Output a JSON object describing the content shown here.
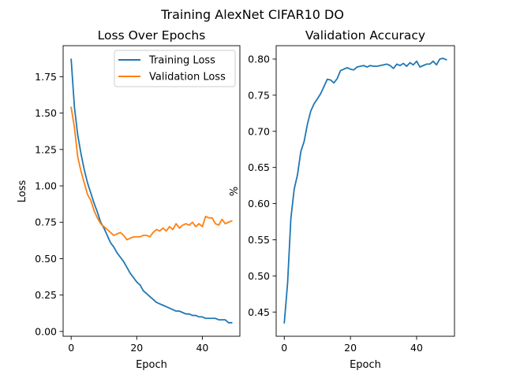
{
  "figure": {
    "title": "Training AlexNet CIFAR10 DO"
  },
  "colors": {
    "training": "#1f77b4",
    "validation": "#ff7f0e"
  },
  "chart_data": [
    {
      "type": "line",
      "title": "Loss Over Epochs",
      "xlabel": "Epoch",
      "ylabel": "Loss",
      "xlim": [
        -2.45,
        51.45
      ],
      "ylim": [
        -0.033,
        1.963
      ],
      "xticks": [
        0,
        20,
        40
      ],
      "yticks": [
        0.0,
        0.25,
        0.5,
        0.75,
        1.0,
        1.25,
        1.5,
        1.75
      ],
      "ytick_labels": [
        "0.00",
        "0.25",
        "0.50",
        "0.75",
        "1.00",
        "1.25",
        "1.50",
        "1.75"
      ],
      "legend": "top-right",
      "grid": false,
      "x": [
        0,
        1,
        2,
        3,
        4,
        5,
        6,
        7,
        8,
        9,
        10,
        11,
        12,
        13,
        14,
        15,
        16,
        17,
        18,
        19,
        20,
        21,
        22,
        23,
        24,
        25,
        26,
        27,
        28,
        29,
        30,
        31,
        32,
        33,
        34,
        35,
        36,
        37,
        38,
        39,
        40,
        41,
        42,
        43,
        44,
        45,
        46,
        47,
        48,
        49
      ],
      "series": [
        {
          "name": "Training Loss",
          "color": "#1f77b4",
          "values": [
            1.87,
            1.54,
            1.35,
            1.22,
            1.11,
            1.02,
            0.95,
            0.88,
            0.82,
            0.75,
            0.71,
            0.66,
            0.61,
            0.58,
            0.54,
            0.51,
            0.48,
            0.44,
            0.4,
            0.37,
            0.34,
            0.32,
            0.28,
            0.26,
            0.24,
            0.22,
            0.2,
            0.19,
            0.18,
            0.17,
            0.16,
            0.15,
            0.14,
            0.14,
            0.13,
            0.12,
            0.12,
            0.11,
            0.11,
            0.1,
            0.1,
            0.09,
            0.09,
            0.09,
            0.09,
            0.08,
            0.08,
            0.08,
            0.06,
            0.06
          ]
        },
        {
          "name": "Validation Loss",
          "color": "#ff7f0e",
          "values": [
            1.54,
            1.4,
            1.2,
            1.1,
            1.02,
            0.94,
            0.9,
            0.83,
            0.78,
            0.74,
            0.72,
            0.7,
            0.68,
            0.66,
            0.67,
            0.68,
            0.66,
            0.63,
            0.64,
            0.65,
            0.65,
            0.65,
            0.66,
            0.66,
            0.65,
            0.68,
            0.7,
            0.69,
            0.71,
            0.69,
            0.72,
            0.7,
            0.74,
            0.71,
            0.73,
            0.74,
            0.73,
            0.75,
            0.72,
            0.74,
            0.72,
            0.79,
            0.78,
            0.78,
            0.74,
            0.73,
            0.77,
            0.74,
            0.75,
            0.76
          ]
        }
      ]
    },
    {
      "type": "line",
      "title": "Validation Accuracy",
      "xlabel": "Epoch",
      "ylabel": "%",
      "xlim": [
        -2.45,
        51.45
      ],
      "ylim": [
        0.4165,
        0.8185
      ],
      "xticks": [
        0,
        20,
        40
      ],
      "yticks": [
        0.45,
        0.5,
        0.55,
        0.6,
        0.65,
        0.7,
        0.75,
        0.8
      ],
      "ytick_labels": [
        "0.45",
        "0.50",
        "0.55",
        "0.60",
        "0.65",
        "0.70",
        "0.75",
        "0.80"
      ],
      "grid": false,
      "x": [
        0,
        1,
        2,
        3,
        4,
        5,
        6,
        7,
        8,
        9,
        10,
        11,
        12,
        13,
        14,
        15,
        16,
        17,
        18,
        19,
        20,
        21,
        22,
        23,
        24,
        25,
        26,
        27,
        28,
        29,
        30,
        31,
        32,
        33,
        34,
        35,
        36,
        37,
        38,
        39,
        40,
        41,
        42,
        43,
        44,
        45,
        46,
        47,
        48,
        49
      ],
      "series": [
        {
          "color": "#1f77b4",
          "values": [
            0.435,
            0.49,
            0.58,
            0.62,
            0.64,
            0.672,
            0.686,
            0.71,
            0.728,
            0.738,
            0.745,
            0.752,
            0.762,
            0.772,
            0.771,
            0.767,
            0.773,
            0.784,
            0.786,
            0.788,
            0.786,
            0.785,
            0.789,
            0.79,
            0.791,
            0.789,
            0.791,
            0.79,
            0.79,
            0.791,
            0.792,
            0.793,
            0.791,
            0.787,
            0.793,
            0.791,
            0.794,
            0.79,
            0.795,
            0.792,
            0.797,
            0.789,
            0.791,
            0.793,
            0.793,
            0.797,
            0.792,
            0.8,
            0.801,
            0.799
          ]
        }
      ]
    }
  ]
}
